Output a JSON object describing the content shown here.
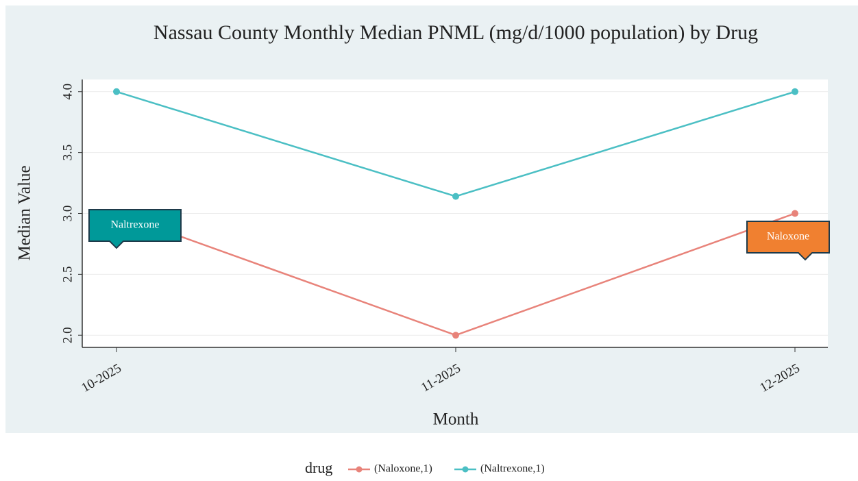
{
  "chart_data": {
    "type": "line",
    "title": "Nassau County Monthly Median PNML (mg/d/1000 population) by Drug",
    "x_label": "Month",
    "y_label": "Median Value",
    "categories": [
      "10-2025",
      "11-2025",
      "12-2025"
    ],
    "series": [
      {
        "name": "(Naloxone,1)",
        "color": "#e8837a",
        "values": [
          3.0,
          2.0,
          3.0
        ]
      },
      {
        "name": "(Naltrexone,1)",
        "color": "#4bbfc4",
        "values": [
          4.0,
          3.14,
          4.0
        ]
      }
    ],
    "ylim": [
      1.9,
      4.1
    ],
    "yticks": [
      {
        "value": 2,
        "label": "2.0"
      },
      2.5,
      {
        "value": 3,
        "label": "3.0"
      },
      3.5,
      {
        "value": 4,
        "label": "4.0"
      }
    ],
    "grid": true,
    "legend_title": "drug",
    "legend_position": "bottom",
    "annotations": [
      {
        "text": "Naltrexone",
        "color": "#009999"
      },
      {
        "text": "Naloxone",
        "color": "#f08030"
      }
    ]
  }
}
